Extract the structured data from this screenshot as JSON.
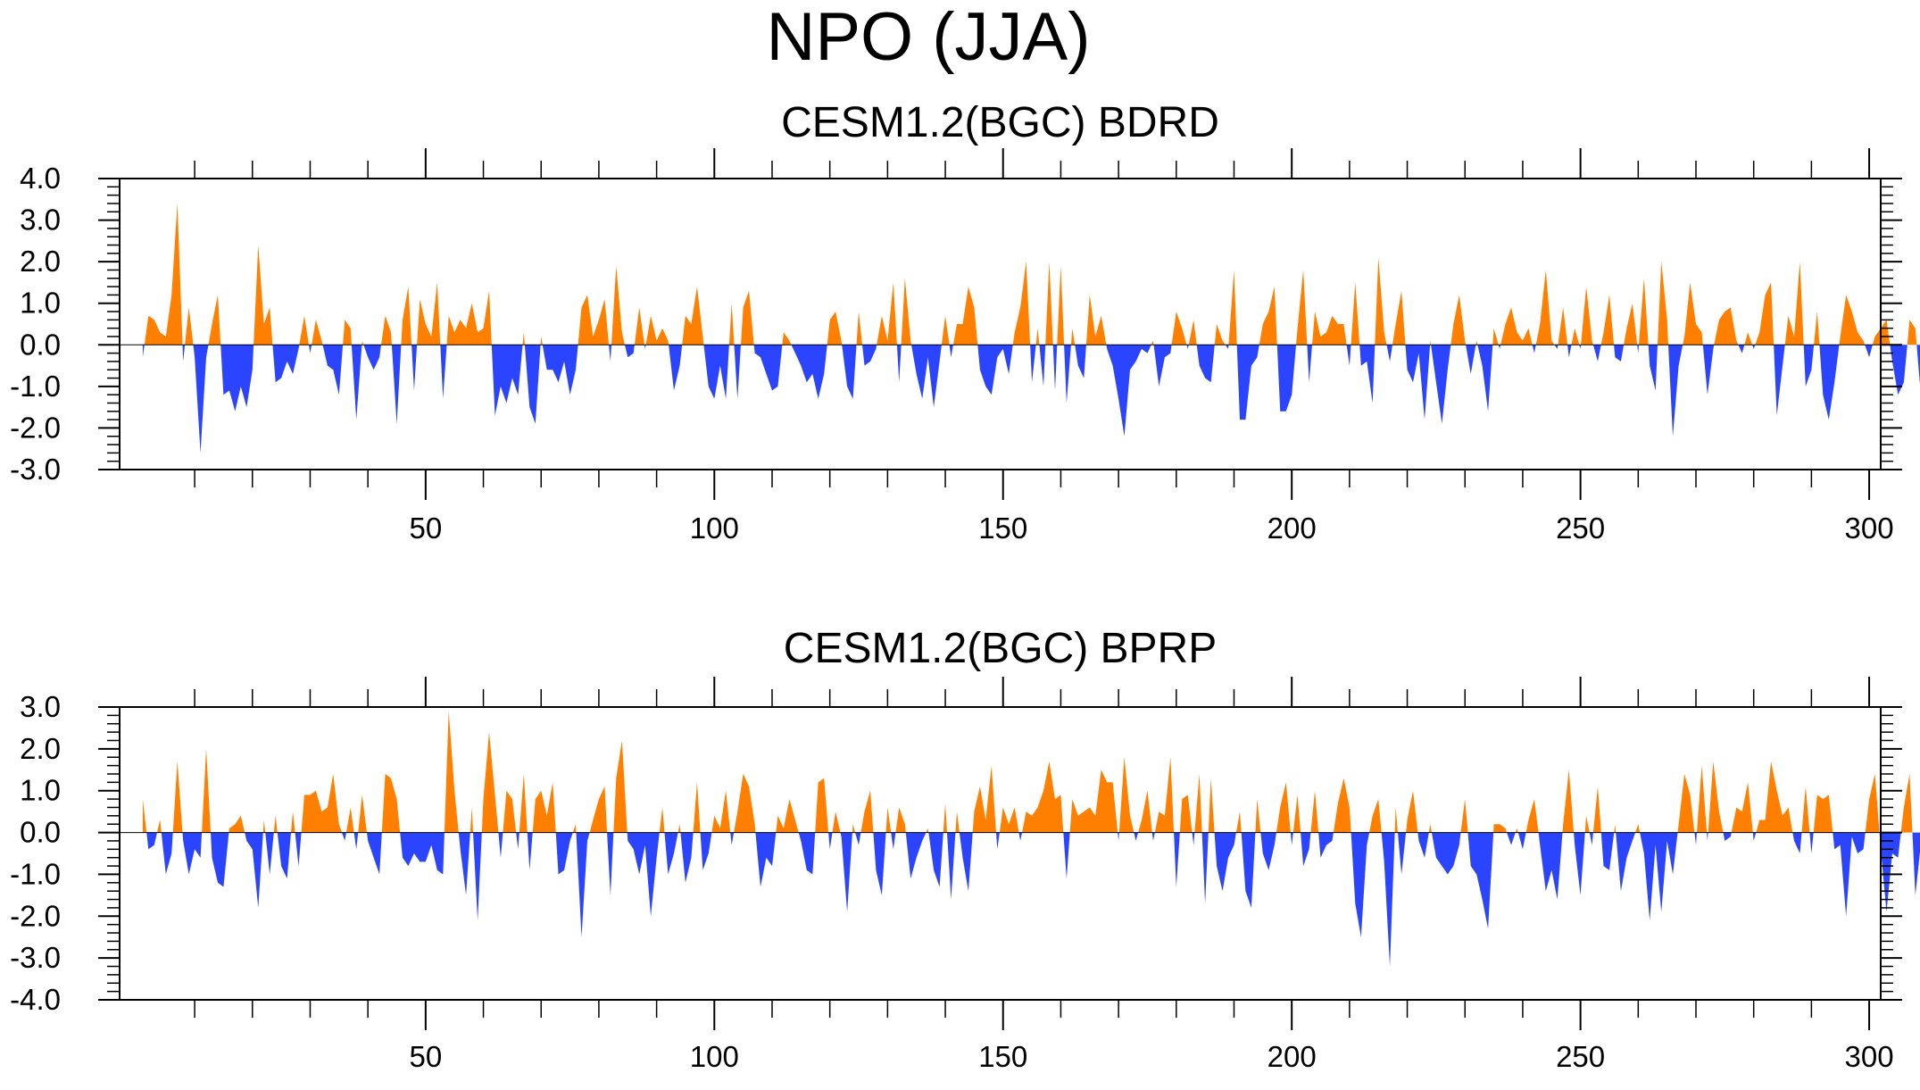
{
  "title": "NPO (JJA)",
  "colors": {
    "positive": "#ff7f00",
    "negative": "#2b44ff",
    "axis": "#000000"
  },
  "chart_data": [
    {
      "type": "area",
      "title": "CESM1.2(BGC) BDRD",
      "xlabel": "",
      "ylabel": "",
      "xlim": [
        1,
        300
      ],
      "ylim": [
        -3.0,
        4.0
      ],
      "xticks": [
        50,
        100,
        150,
        200,
        250,
        300
      ],
      "yticks": [
        "-3.0",
        "-2.0",
        "-1.0",
        "0.0",
        "1.0",
        "2.0",
        "3.0",
        "4.0"
      ],
      "x_start": 1,
      "values": [
        -0.3,
        0.7,
        0.6,
        0.3,
        0.2,
        1.2,
        3.4,
        -0.4,
        0.9,
        -0.3,
        -2.6,
        -0.3,
        0.5,
        1.2,
        -1.2,
        -1.1,
        -1.6,
        -1.0,
        -1.5,
        -0.6,
        2.4,
        0.5,
        0.9,
        -0.9,
        -0.8,
        -0.4,
        -0.7,
        -0.1,
        0.7,
        -0.2,
        0.6,
        0.1,
        -0.5,
        -0.6,
        -1.2,
        0.6,
        0.4,
        -1.8,
        0.1,
        -0.3,
        -0.6,
        -0.3,
        0.7,
        0.3,
        -1.9,
        0.6,
        1.4,
        -1.1,
        1.1,
        0.5,
        0.2,
        1.5,
        -1.3,
        0.7,
        0.3,
        0.6,
        0.4,
        1.0,
        0.3,
        0.4,
        1.3,
        -1.7,
        -1.0,
        -1.4,
        -0.8,
        -1.2,
        0.3,
        -1.5,
        -1.9,
        0.2,
        -0.6,
        -0.6,
        -0.9,
        -0.4,
        -1.2,
        -0.6,
        0.9,
        1.2,
        0.2,
        0.6,
        1.1,
        -0.4,
        1.9,
        0.3,
        -0.3,
        -0.2,
        0.9,
        -0.1,
        0.7,
        0.1,
        0.4,
        0.1,
        -1.1,
        -0.5,
        0.7,
        0.5,
        1.4,
        0.2,
        -1.0,
        -1.3,
        -0.5,
        -1.3,
        1.0,
        -1.3,
        0.9,
        1.3,
        -0.2,
        -0.3,
        -0.7,
        -1.1,
        -1.0,
        0.3,
        0.1,
        -0.2,
        -0.5,
        -0.9,
        -0.7,
        -1.3,
        -0.7,
        0.6,
        0.8,
        0.1,
        -1.0,
        -1.3,
        0.8,
        -0.5,
        -0.4,
        -0.1,
        0.7,
        0.1,
        1.5,
        -0.9,
        1.6,
        0.1,
        -0.7,
        -1.3,
        -0.3,
        -1.5,
        -0.4,
        0.7,
        -0.3,
        0.5,
        0.5,
        1.4,
        0.9,
        -0.6,
        -1.0,
        -1.2,
        -0.3,
        -0.1,
        -0.7,
        0.3,
        0.9,
        2.0,
        -0.9,
        0.4,
        -1.0,
        2.0,
        -1.1,
        1.9,
        -1.4,
        0.4,
        -0.5,
        -0.8,
        1.2,
        0.2,
        0.7,
        -0.1,
        -0.5,
        -1.3,
        -2.2,
        -0.6,
        -0.4,
        -0.1,
        -0.2,
        0.1,
        -1.0,
        -0.3,
        -0.2,
        0.8,
        0.4,
        -0.1,
        0.6,
        -0.5,
        -0.8,
        -0.9,
        0.5,
        0.1,
        -0.1,
        1.8,
        -1.8,
        -1.8,
        -0.5,
        -0.3,
        0.5,
        0.8,
        1.4,
        -1.6,
        -1.6,
        -1.2,
        0.4,
        1.8,
        -0.9,
        0.8,
        0.2,
        0.3,
        0.7,
        0.5,
        0.5,
        -0.5,
        1.5,
        -0.5,
        -0.4,
        -1.4,
        2.1,
        0.3,
        -0.4,
        0.5,
        1.3,
        -0.6,
        -0.9,
        -0.2,
        -1.8,
        0.1,
        -0.9,
        -1.9,
        -0.6,
        0.5,
        1.2,
        0.1,
        -0.7,
        0.1,
        -0.5,
        -1.6,
        0.4,
        -0.1,
        0.5,
        0.9,
        0.3,
        0.1,
        0.4,
        -0.2,
        0.5,
        1.8,
        0.1,
        -0.1,
        0.9,
        -0.3,
        0.4,
        -0.1,
        1.4,
        0.1,
        -0.4,
        0.3,
        1.2,
        -0.3,
        -0.4,
        0.4,
        1.0,
        -0.2,
        1.6,
        -0.5,
        -1.1,
        2.0,
        0.6,
        -2.2,
        -0.5,
        0.2,
        1.5,
        0.5,
        0.3,
        -1.2,
        -0.1,
        0.6,
        0.8,
        0.9,
        0.1,
        -0.2,
        0.3,
        -0.1,
        0.3,
        1.2,
        1.5,
        -1.7,
        -0.5,
        0.7,
        0.2,
        2.0,
        -1.0,
        -0.6,
        0.8,
        -1.2,
        -1.8,
        -0.9,
        0.2,
        1.2,
        0.8,
        0.3,
        0.1,
        -0.3,
        0.2,
        0.4,
        0.6,
        -0.4,
        -1.2,
        -0.9,
        0.6,
        0.4,
        -1.3
      ]
    },
    {
      "type": "area",
      "title": "CESM1.2(BGC) BPRP",
      "xlabel": "",
      "ylabel": "",
      "xlim": [
        1,
        300
      ],
      "ylim": [
        -4.0,
        3.0
      ],
      "xticks": [
        50,
        100,
        150,
        200,
        250,
        300
      ],
      "yticks": [
        "-4.0",
        "-3.0",
        "-2.0",
        "-1.0",
        "0.0",
        "1.0",
        "2.0",
        "3.0"
      ],
      "x_start": 1,
      "values": [
        0.8,
        -0.4,
        -0.3,
        0.3,
        -1.0,
        -0.5,
        1.7,
        -0.2,
        -1.0,
        -0.4,
        -0.6,
        2.0,
        -0.6,
        -1.2,
        -1.3,
        0.1,
        0.2,
        0.4,
        -0.2,
        -0.4,
        -1.8,
        0.3,
        -1.0,
        0.4,
        -0.8,
        -1.1,
        0.5,
        -0.8,
        0.9,
        0.9,
        1.0,
        0.5,
        0.6,
        1.4,
        0.2,
        -0.2,
        0.6,
        -0.4,
        0.9,
        -0.2,
        -0.6,
        -1.0,
        1.4,
        1.3,
        0.8,
        -0.6,
        -0.8,
        -0.5,
        -0.7,
        -0.7,
        -0.3,
        -0.9,
        -1.0,
        2.9,
        1.0,
        -0.4,
        -1.5,
        0.6,
        -2.1,
        0.8,
        2.4,
        0.9,
        -0.6,
        1.0,
        0.8,
        -0.4,
        1.4,
        -0.9,
        0.8,
        1.0,
        0.4,
        1.2,
        -1.0,
        -0.9,
        -0.2,
        0.2,
        -2.5,
        -0.2,
        0.3,
        0.8,
        1.1,
        -1.5,
        1.3,
        2.2,
        -0.2,
        -0.4,
        -1.0,
        -0.3,
        -2.0,
        -0.6,
        0.6,
        -1.0,
        -0.5,
        0.2,
        -1.2,
        -0.6,
        1.2,
        -0.9,
        -0.5,
        0.4,
        0.1,
        1.0,
        -0.3,
        0.5,
        1.4,
        1.1,
        0.2,
        -1.3,
        -0.6,
        -0.8,
        0.4,
        0.1,
        0.8,
        0.3,
        -0.2,
        -0.9,
        -1.0,
        1.2,
        1.3,
        -0.4,
        0.5,
        -0.1,
        -1.9,
        0.2,
        -0.3,
        0.5,
        1.0,
        -0.9,
        -1.5,
        0.6,
        -0.4,
        0.6,
        0.2,
        -1.1,
        -0.6,
        -0.2,
        0.1,
        -0.9,
        -1.3,
        0.7,
        -1.6,
        0.5,
        -0.6,
        -1.4,
        0.5,
        1.1,
        0.3,
        1.6,
        -0.4,
        0.6,
        0.2,
        0.6,
        -0.2,
        0.5,
        0.4,
        0.6,
        1.0,
        1.7,
        0.8,
        0.9,
        -1.1,
        0.8,
        0.4,
        0.5,
        0.6,
        0.4,
        1.5,
        1.2,
        1.2,
        -0.2,
        1.8,
        0.4,
        -0.2,
        0.3,
        1.0,
        -0.2,
        0.5,
        0.4,
        1.8,
        -1.3,
        0.8,
        0.9,
        -0.3,
        1.4,
        -1.7,
        1.3,
        -0.8,
        -1.4,
        -0.6,
        -0.3,
        0.5,
        -1.4,
        -1.8,
        0.8,
        -0.5,
        -0.9,
        -0.3,
        0.6,
        1.2,
        -0.3,
        0.9,
        -0.8,
        -0.4,
        1.0,
        -0.6,
        -0.3,
        -0.2,
        0.7,
        1.3,
        0.6,
        -1.7,
        -2.5,
        -0.3,
        0.4,
        0.8,
        -0.7,
        -3.2,
        0.6,
        -1.0,
        0.3,
        1.0,
        -0.2,
        -0.6,
        0.2,
        -0.6,
        -0.8,
        -1.0,
        -0.8,
        -0.3,
        0.8,
        -0.8,
        -1.0,
        -1.6,
        -2.3,
        0.2,
        0.2,
        0.1,
        -0.3,
        0.1,
        -0.4,
        0.3,
        0.8,
        -0.3,
        -1.4,
        -0.9,
        -1.6,
        0.2,
        1.5,
        -0.3,
        -1.5,
        0.4,
        -0.3,
        1.1,
        -0.8,
        -0.9,
        0.2,
        -1.4,
        -0.6,
        -0.2,
        0.2,
        -0.5,
        -2.1,
        -0.3,
        -1.9,
        -0.2,
        -1.0,
        0.2,
        1.4,
        0.9,
        -0.3,
        1.6,
        -0.2,
        1.7,
        0.5,
        -0.2,
        -0.1,
        0.6,
        0.5,
        1.2,
        -0.2,
        0.3,
        0.3,
        1.7,
        1.0,
        0.4,
        0.6,
        -0.2,
        -0.5,
        1.1,
        -0.5,
        0.9,
        0.8,
        0.9,
        -0.4,
        -0.3,
        -2.0,
        -0.1,
        -0.5,
        -0.4,
        0.8,
        1.4,
        -0.4,
        -1.9,
        -0.5,
        -0.6,
        0.6,
        1.4,
        -1.5,
        -0.2,
        0.3
      ]
    }
  ]
}
